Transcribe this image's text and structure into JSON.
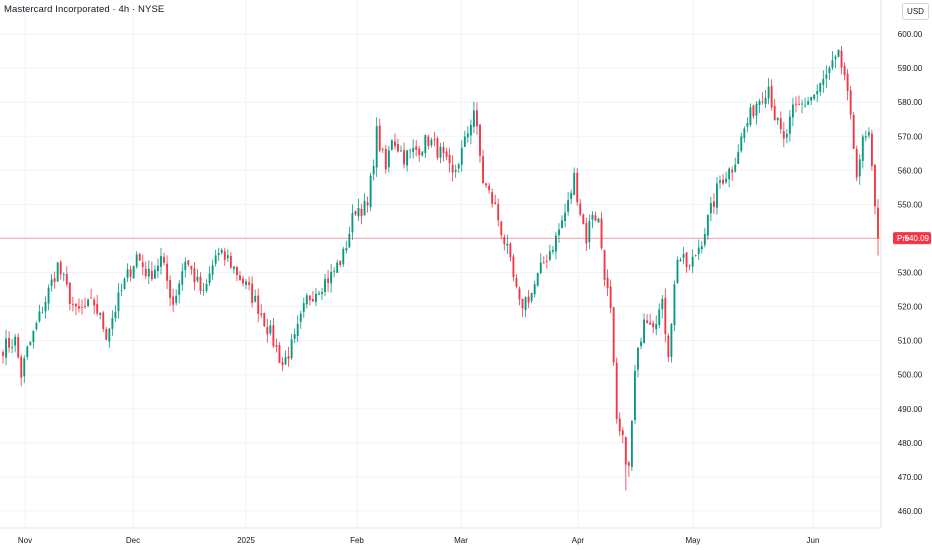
{
  "header": {
    "title": "Mastercard Incorporated · 4h · NYSE",
    "currency": "USD"
  },
  "price_marker": {
    "session_label": "Pre",
    "value": "540.09",
    "color": "#f23645"
  },
  "colors": {
    "up": "#089981",
    "down": "#f23645",
    "grid": "#f0f3fa",
    "axis_text": "#131722",
    "price_line": "#f23645"
  },
  "chart_data": {
    "type": "candlestick",
    "title": "Mastercard Incorporated · 4h · NYSE",
    "ylabel": "USD",
    "ylim": [
      455,
      610
    ],
    "grid": true,
    "y_ticks": [
      "460.00",
      "470.00",
      "480.00",
      "490.00",
      "500.00",
      "510.00",
      "520.00",
      "530.00",
      "540.00",
      "550.00",
      "560.00",
      "570.00",
      "580.00",
      "590.00",
      "600.00"
    ],
    "x_ticks": [
      "Nov",
      "Dec",
      "2025",
      "Feb",
      "Mar",
      "Apr",
      "May",
      "Jun"
    ],
    "last_price": 540.09,
    "waypoints": [
      {
        "i": 0,
        "p": 508
      },
      {
        "i": 4,
        "p": 510
      },
      {
        "i": 6,
        "p": 500
      },
      {
        "i": 8,
        "p": 507
      },
      {
        "i": 14,
        "p": 522
      },
      {
        "i": 18,
        "p": 532
      },
      {
        "i": 24,
        "p": 518
      },
      {
        "i": 30,
        "p": 521
      },
      {
        "i": 34,
        "p": 512
      },
      {
        "i": 40,
        "p": 527
      },
      {
        "i": 44,
        "p": 535
      },
      {
        "i": 48,
        "p": 529
      },
      {
        "i": 52,
        "p": 534
      },
      {
        "i": 56,
        "p": 521
      },
      {
        "i": 60,
        "p": 534
      },
      {
        "i": 66,
        "p": 523
      },
      {
        "i": 70,
        "p": 535
      },
      {
        "i": 74,
        "p": 534
      },
      {
        "i": 80,
        "p": 526
      },
      {
        "i": 84,
        "p": 520
      },
      {
        "i": 88,
        "p": 512
      },
      {
        "i": 92,
        "p": 503
      },
      {
        "i": 96,
        "p": 510
      },
      {
        "i": 100,
        "p": 522
      },
      {
        "i": 104,
        "p": 526
      },
      {
        "i": 108,
        "p": 529
      },
      {
        "i": 112,
        "p": 535
      },
      {
        "i": 116,
        "p": 549
      },
      {
        "i": 120,
        "p": 549
      },
      {
        "i": 123,
        "p": 571
      },
      {
        "i": 126,
        "p": 560
      },
      {
        "i": 128,
        "p": 570
      },
      {
        "i": 132,
        "p": 564
      },
      {
        "i": 136,
        "p": 566
      },
      {
        "i": 140,
        "p": 569
      },
      {
        "i": 144,
        "p": 565
      },
      {
        "i": 148,
        "p": 558
      },
      {
        "i": 152,
        "p": 568
      },
      {
        "i": 155,
        "p": 578
      },
      {
        "i": 158,
        "p": 557
      },
      {
        "i": 162,
        "p": 549
      },
      {
        "i": 166,
        "p": 536
      },
      {
        "i": 170,
        "p": 520
      },
      {
        "i": 174,
        "p": 524
      },
      {
        "i": 178,
        "p": 533
      },
      {
        "i": 182,
        "p": 540
      },
      {
        "i": 186,
        "p": 550
      },
      {
        "i": 188,
        "p": 558
      },
      {
        "i": 190,
        "p": 548
      },
      {
        "i": 192,
        "p": 540
      },
      {
        "i": 194,
        "p": 548
      },
      {
        "i": 196,
        "p": 545
      },
      {
        "i": 198,
        "p": 530
      },
      {
        "i": 200,
        "p": 518
      },
      {
        "i": 202,
        "p": 485
      },
      {
        "i": 204,
        "p": 480
      },
      {
        "i": 206,
        "p": 472
      },
      {
        "i": 208,
        "p": 500
      },
      {
        "i": 211,
        "p": 518
      },
      {
        "i": 214,
        "p": 516
      },
      {
        "i": 217,
        "p": 520
      },
      {
        "i": 219,
        "p": 507
      },
      {
        "i": 222,
        "p": 535
      },
      {
        "i": 226,
        "p": 531
      },
      {
        "i": 230,
        "p": 540
      },
      {
        "i": 233,
        "p": 548
      },
      {
        "i": 236,
        "p": 557
      },
      {
        "i": 240,
        "p": 561
      },
      {
        "i": 244,
        "p": 572
      },
      {
        "i": 248,
        "p": 580
      },
      {
        "i": 252,
        "p": 585
      },
      {
        "i": 254,
        "p": 576
      },
      {
        "i": 257,
        "p": 568
      },
      {
        "i": 260,
        "p": 577
      },
      {
        "i": 264,
        "p": 580
      },
      {
        "i": 268,
        "p": 583
      },
      {
        "i": 272,
        "p": 589
      },
      {
        "i": 275,
        "p": 593
      },
      {
        "i": 277,
        "p": 588
      },
      {
        "i": 279,
        "p": 574
      },
      {
        "i": 281,
        "p": 560
      },
      {
        "i": 283,
        "p": 568
      },
      {
        "i": 285,
        "p": 570
      },
      {
        "i": 287,
        "p": 548
      },
      {
        "i": 288,
        "p": 540.09
      }
    ]
  }
}
